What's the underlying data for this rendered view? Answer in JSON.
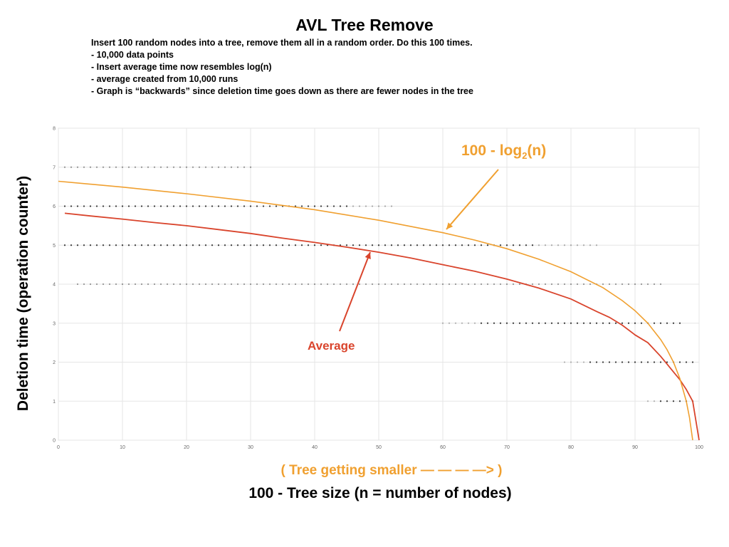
{
  "chart_data": {
    "type": "line",
    "title": "AVL Tree Remove",
    "notes": [
      "Insert 100 random nodes into a tree, remove them all in a random order. Do this 100 times.",
      "-  10,000 data points",
      "-  Insert average time now resembles log(n)",
      "-  average created from 10,000 runs",
      "-  Graph is “backwards” since deletion time goes down as there are fewer nodes in the tree"
    ],
    "xlabel": "100 - Tree size (n = number of nodes)",
    "xlabel_note": "( Tree getting smaller — —  —  —> )",
    "ylabel": "Deletion time (operation counter)",
    "xlim": [
      0,
      100
    ],
    "ylim": [
      0,
      8
    ],
    "x_ticks": [
      0,
      10,
      20,
      30,
      40,
      50,
      60,
      70,
      80,
      90,
      100
    ],
    "y_ticks": [
      0,
      1,
      2,
      3,
      4,
      5,
      6,
      7,
      8
    ],
    "grid": true,
    "annotations": {
      "log_curve": {
        "text_main": "100 - log",
        "text_sub": "2",
        "text_end": "(n)"
      },
      "average": {
        "text": "Average"
      }
    },
    "series": [
      {
        "name": "Average",
        "color": "#d9442c",
        "x": [
          1,
          5,
          10,
          15,
          20,
          25,
          30,
          35,
          40,
          45,
          50,
          55,
          60,
          65,
          70,
          75,
          80,
          84,
          86,
          88,
          90,
          92,
          94,
          95,
          96,
          97,
          98,
          99,
          100
        ],
        "y": [
          5.82,
          5.75,
          5.67,
          5.58,
          5.5,
          5.4,
          5.3,
          5.18,
          5.07,
          4.95,
          4.82,
          4.67,
          4.5,
          4.33,
          4.13,
          3.9,
          3.62,
          3.3,
          3.15,
          2.95,
          2.7,
          2.5,
          2.15,
          1.95,
          1.75,
          1.55,
          1.3,
          1.0,
          0.0
        ]
      },
      {
        "name": "100 - log2(n)",
        "color": "#f0a030",
        "x": [
          0,
          10,
          20,
          30,
          40,
          50,
          60,
          65,
          70,
          75,
          80,
          85,
          88,
          90,
          92,
          94,
          95,
          96,
          97,
          98,
          98.5,
          99
        ],
        "y": [
          6.64,
          6.49,
          6.32,
          6.13,
          5.91,
          5.64,
          5.32,
          5.13,
          4.91,
          4.64,
          4.32,
          3.91,
          3.58,
          3.32,
          3.0,
          2.58,
          2.32,
          2.0,
          1.58,
          1.0,
          0.58,
          0.0
        ]
      }
    ],
    "raw_points": [
      {
        "y": 1,
        "x_from": 92,
        "x_to": 99
      },
      {
        "y": 2,
        "x_from": 79,
        "x_to": 99
      },
      {
        "y": 3,
        "x_from": 60,
        "x_to": 97
      },
      {
        "y": 4,
        "x_from": 3,
        "x_to": 94
      },
      {
        "y": 5,
        "x_from": 1,
        "x_to": 84
      },
      {
        "y": 6,
        "x_from": 1,
        "x_to": 52
      },
      {
        "y": 7,
        "x_from": 1,
        "x_to": 30
      }
    ]
  }
}
